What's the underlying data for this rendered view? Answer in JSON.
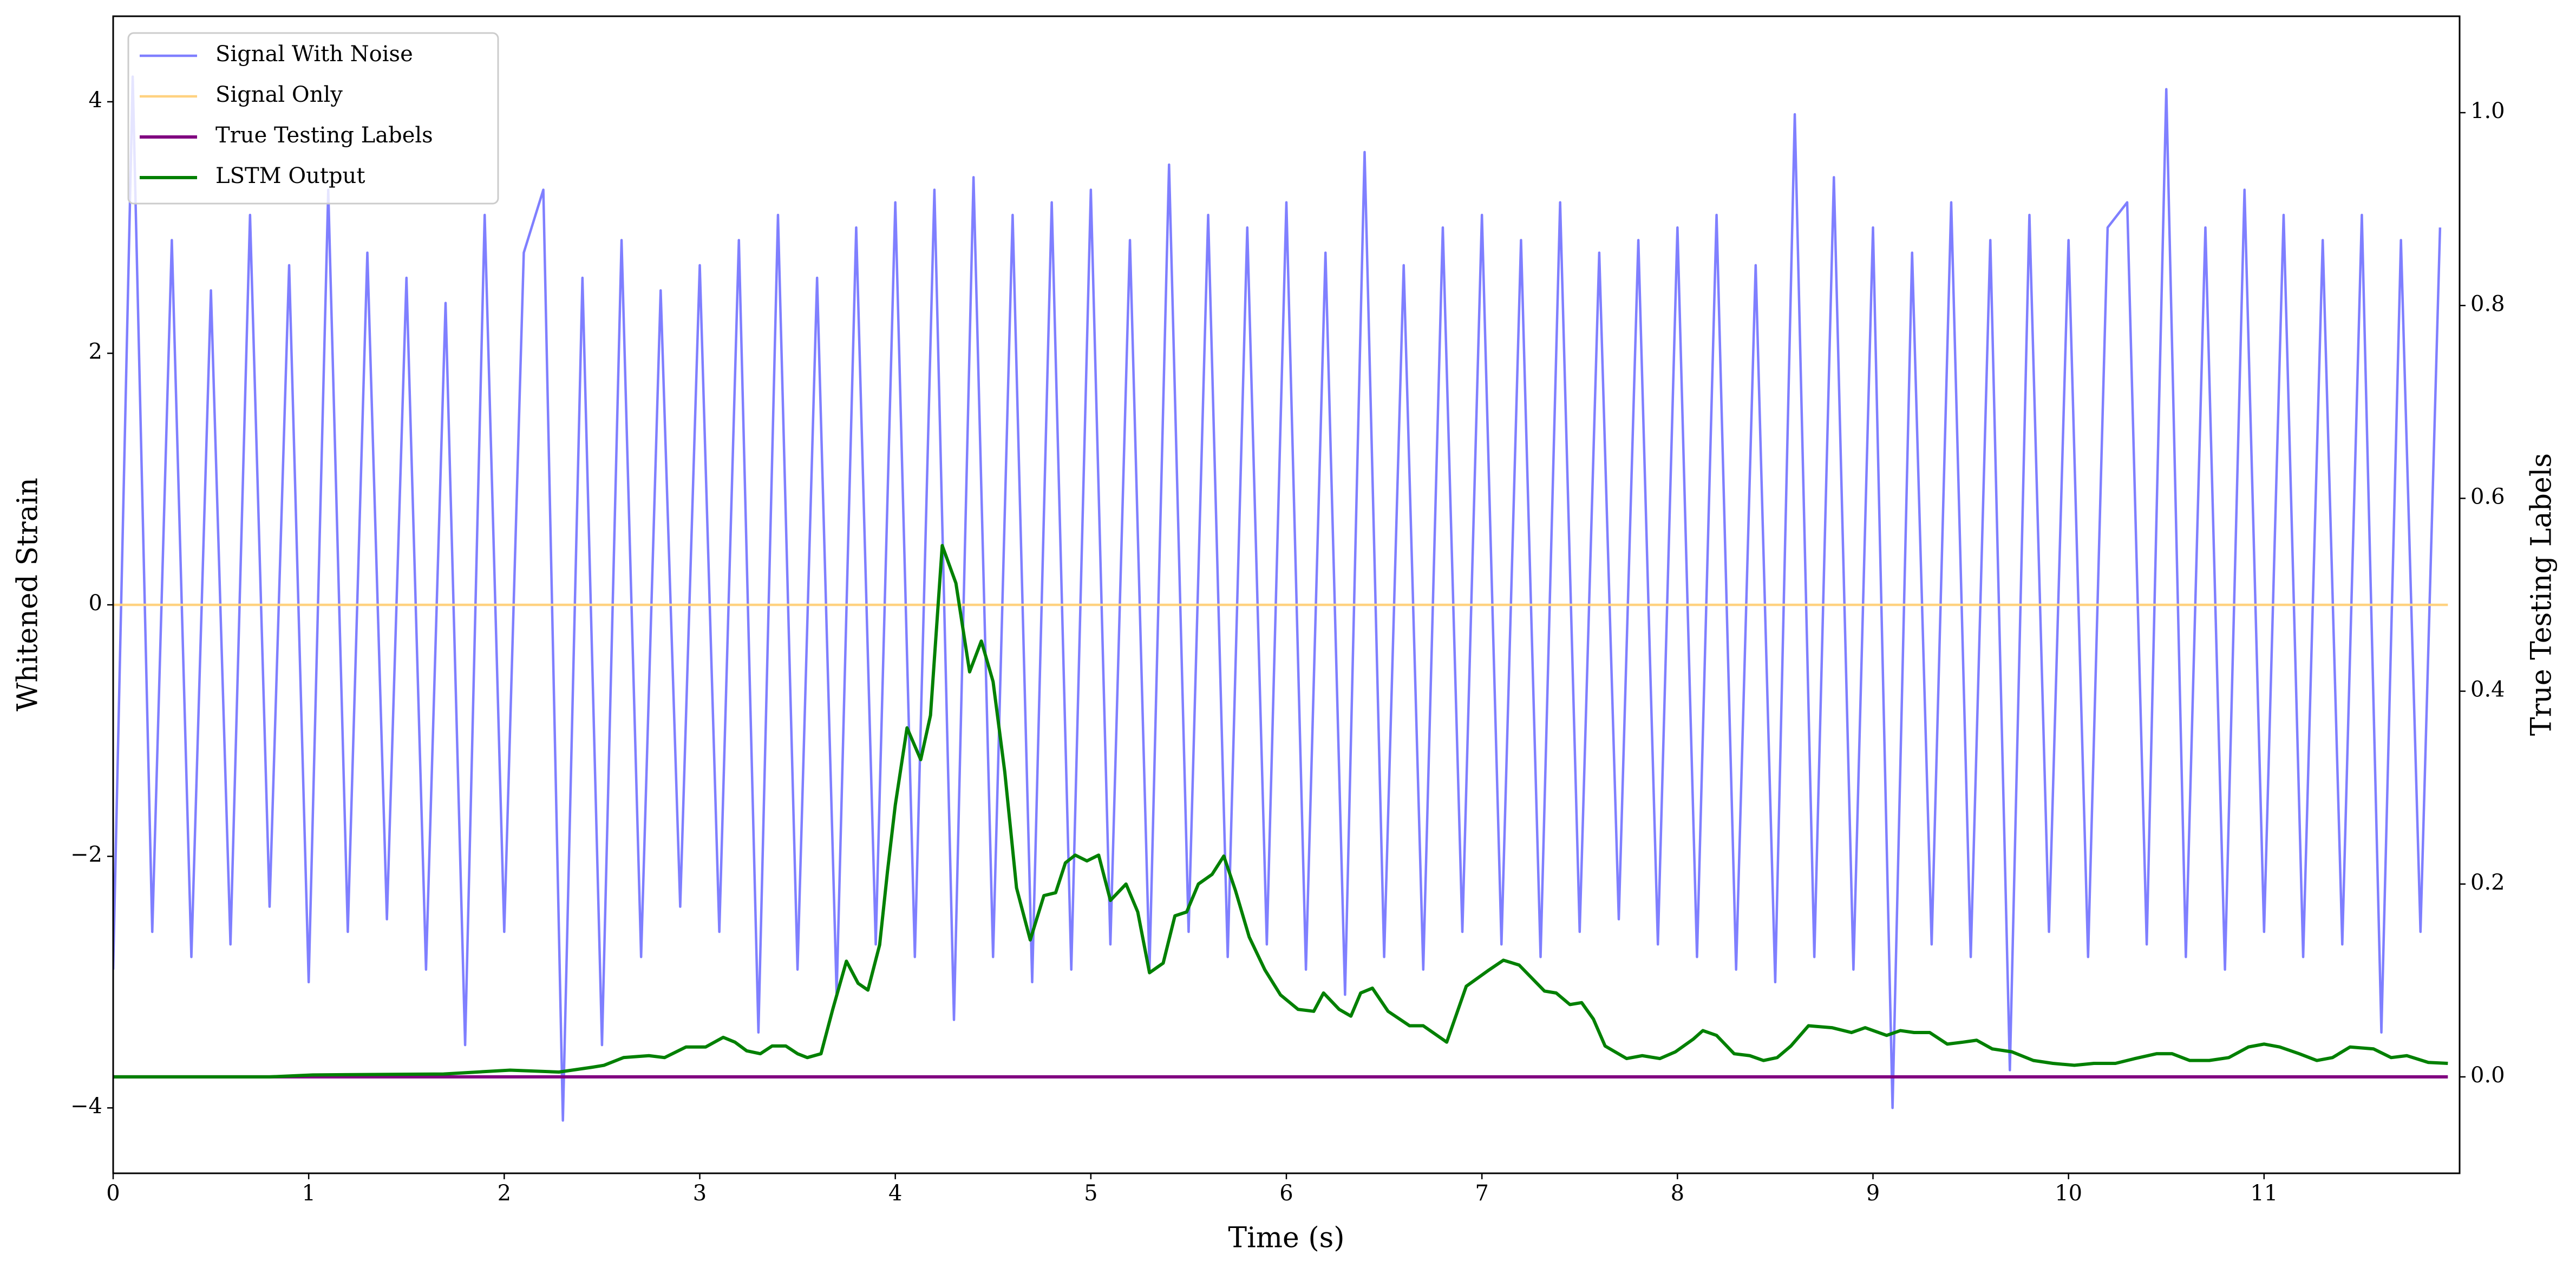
{
  "chart_data": {
    "type": "line",
    "xlabel": "Time (s)",
    "ylabel": "Whitened Strain",
    "y2label": "True Testing Labels",
    "xlim": [
      0,
      12
    ],
    "ylim": [
      -4.52,
      4.68
    ],
    "y2lim": [
      -0.1,
      1.1
    ],
    "xticks": [
      0,
      1,
      2,
      3,
      4,
      5,
      6,
      7,
      8,
      9,
      10,
      11
    ],
    "yticks": [
      {
        "value": -4,
        "label": "−4"
      },
      {
        "value": -2,
        "label": "−2"
      },
      0,
      2,
      4
    ],
    "y2ticks": [
      {
        "value": 0,
        "label": "0.0"
      },
      0.2,
      0.4,
      0.6,
      0.8,
      {
        "value": 1,
        "label": "1.0"
      }
    ],
    "legend": "upper left",
    "series": [
      {
        "name": "Signal With Noise",
        "color": "#7f7fff",
        "x": [
          0,
          0.1,
          0.2,
          0.3,
          0.4,
          0.5,
          0.6,
          0.7,
          0.8,
          0.9,
          1,
          1.1,
          1.2,
          1.3,
          1.4,
          1.5,
          1.6,
          1.7,
          1.8,
          1.9,
          2,
          2.1,
          2.2,
          2.3,
          2.4,
          2.5,
          2.6,
          2.7,
          2.8,
          2.9,
          3,
          3.1,
          3.2,
          3.3,
          3.4,
          3.5,
          3.6,
          3.7,
          3.8,
          3.9,
          4,
          4.1,
          4.2,
          4.3,
          4.4,
          4.5,
          4.6,
          4.7,
          4.8,
          4.9,
          5,
          5.1,
          5.2,
          5.3,
          5.4,
          5.5,
          5.6,
          5.7,
          5.8,
          5.9,
          6,
          6.1,
          6.2,
          6.3,
          6.4,
          6.5,
          6.6,
          6.7,
          6.8,
          6.9,
          7,
          7.1,
          7.2,
          7.3,
          7.4,
          7.5,
          7.6,
          7.7,
          7.8,
          7.9,
          8,
          8.1,
          8.2,
          8.3,
          8.4,
          8.5,
          8.6,
          8.7,
          8.8,
          8.9,
          9,
          9.1,
          9.2,
          9.3,
          9.4,
          9.5,
          9.6,
          9.7,
          9.8,
          9.9,
          10,
          10.1,
          10.2,
          10.3,
          10.4,
          10.5,
          10.6,
          10.7,
          10.8,
          10.9,
          11,
          11.1,
          11.2,
          11.3,
          11.4,
          11.5,
          11.6,
          11.7,
          11.8,
          11.9
        ],
        "values": [
          -2.9,
          4.2,
          -2.6,
          2.9,
          -2.8,
          2.5,
          -2.7,
          3.1,
          -2.4,
          2.7,
          -3.0,
          3.3,
          -2.6,
          2.8,
          -2.5,
          2.6,
          -2.9,
          2.4,
          -3.5,
          3.1,
          -2.6,
          2.8,
          3.3,
          -4.1,
          2.6,
          -3.5,
          2.9,
          -2.8,
          2.5,
          -2.4,
          2.7,
          -2.6,
          2.9,
          -3.4,
          3.1,
          -2.9,
          2.6,
          -3.1,
          3.0,
          -2.7,
          3.2,
          -2.8,
          3.3,
          -3.3,
          3.4,
          -2.8,
          3.1,
          -3.0,
          3.2,
          -2.9,
          3.3,
          -2.7,
          2.9,
          -2.9,
          3.5,
          -2.6,
          3.1,
          -2.8,
          3.0,
          -2.7,
          3.2,
          -2.9,
          2.8,
          -3.1,
          3.6,
          -2.8,
          2.7,
          -2.9,
          3.0,
          -2.6,
          3.1,
          -2.7,
          2.9,
          -2.8,
          3.2,
          -2.6,
          2.8,
          -2.5,
          2.9,
          -2.7,
          3.0,
          -2.8,
          3.1,
          -2.9,
          2.7,
          -3.0,
          3.9,
          -2.8,
          3.4,
          -2.9,
          3.0,
          -4.0,
          2.8,
          -2.7,
          3.2,
          -2.8,
          2.9,
          -3.7,
          3.1,
          -2.6,
          2.9,
          -2.8,
          3.0,
          3.2,
          -2.7,
          4.1,
          -2.8,
          3.0,
          -2.9,
          3.3,
          -2.6,
          3.1,
          -2.8,
          2.9,
          -2.7,
          3.1,
          -3.4,
          2.9,
          -2.6,
          3.0
        ]
      },
      {
        "name": "Signal Only",
        "color": "#ffd280",
        "x": [
          0,
          11.94
        ],
        "values": [
          0,
          0
        ]
      },
      {
        "name": "True Testing Labels",
        "color": "#800080",
        "axis": "y2",
        "x": [
          0,
          11.94
        ],
        "values": [
          0,
          0
        ]
      },
      {
        "name": "LSTM Output",
        "color": "#008000",
        "axis": "y2",
        "x": [
          0,
          0.8,
          1.02,
          1.69,
          2.03,
          2.28,
          2.45,
          2.51,
          2.61,
          2.74,
          2.82,
          2.93,
          3.03,
          3.12,
          3.18,
          3.24,
          3.31,
          3.37,
          3.44,
          3.5,
          3.55,
          3.62,
          3.68,
          3.75,
          3.81,
          3.86,
          3.92,
          3.96,
          4.0,
          4.06,
          4.13,
          4.18,
          4.24,
          4.31,
          4.38,
          4.44,
          4.5,
          4.56,
          4.62,
          4.69,
          4.76,
          4.82,
          4.87,
          4.92,
          4.98,
          5.04,
          5.1,
          5.18,
          5.24,
          5.3,
          5.37,
          5.43,
          5.49,
          5.55,
          5.62,
          5.68,
          5.74,
          5.81,
          5.89,
          5.97,
          6.06,
          6.14,
          6.19,
          6.27,
          6.33,
          6.38,
          6.44,
          6.52,
          6.63,
          6.7,
          6.82,
          6.92,
          7.03,
          7.11,
          7.19,
          7.32,
          7.38,
          7.45,
          7.51,
          7.57,
          7.63,
          7.74,
          7.82,
          7.91,
          7.99,
          8.08,
          8.13,
          8.2,
          8.29,
          8.37,
          8.44,
          8.51,
          8.58,
          8.67,
          8.79,
          8.89,
          8.96,
          9.07,
          9.14,
          9.21,
          9.29,
          9.38,
          9.46,
          9.53,
          9.61,
          9.71,
          9.82,
          9.92,
          10.03,
          10.13,
          10.24,
          10.34,
          10.45,
          10.53,
          10.62,
          10.72,
          10.82,
          10.92,
          11.0,
          11.08,
          11.18,
          11.27,
          11.35,
          11.44,
          11.56,
          11.65,
          11.73,
          11.84,
          11.94
        ],
        "values": [
          0,
          0,
          0.002,
          0.003,
          0.007,
          0.005,
          0.01,
          0.012,
          0.02,
          0.022,
          0.02,
          0.031,
          0.031,
          0.041,
          0.036,
          0.027,
          0.024,
          0.032,
          0.032,
          0.024,
          0.02,
          0.024,
          0.07,
          0.12,
          0.097,
          0.09,
          0.137,
          0.213,
          0.282,
          0.362,
          0.329,
          0.375,
          0.551,
          0.512,
          0.42,
          0.452,
          0.41,
          0.316,
          0.196,
          0.142,
          0.188,
          0.191,
          0.222,
          0.23,
          0.224,
          0.23,
          0.183,
          0.2,
          0.171,
          0.108,
          0.118,
          0.167,
          0.171,
          0.2,
          0.21,
          0.229,
          0.193,
          0.145,
          0.111,
          0.085,
          0.07,
          0.068,
          0.087,
          0.07,
          0.063,
          0.087,
          0.092,
          0.068,
          0.053,
          0.053,
          0.036,
          0.094,
          0.11,
          0.121,
          0.116,
          0.089,
          0.087,
          0.075,
          0.077,
          0.06,
          0.032,
          0.019,
          0.022,
          0.019,
          0.026,
          0.039,
          0.048,
          0.043,
          0.024,
          0.022,
          0.017,
          0.02,
          0.032,
          0.053,
          0.051,
          0.046,
          0.051,
          0.043,
          0.048,
          0.046,
          0.046,
          0.034,
          0.036,
          0.038,
          0.029,
          0.026,
          0.017,
          0.014,
          0.012,
          0.014,
          0.014,
          0.019,
          0.024,
          0.024,
          0.017,
          0.017,
          0.02,
          0.031,
          0.034,
          0.031,
          0.024,
          0.017,
          0.02,
          0.031,
          0.029,
          0.02,
          0.022,
          0.015,
          0.014
        ]
      }
    ]
  }
}
